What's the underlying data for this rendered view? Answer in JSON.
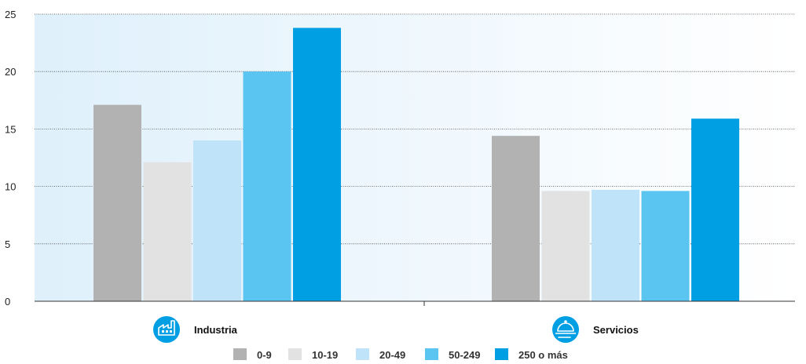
{
  "chart_data": {
    "type": "bar",
    "categories": [
      "Industria",
      "Servicios"
    ],
    "series": [
      {
        "name": "0-9",
        "values": [
          17.1,
          14.4
        ],
        "color": "#b2b2b2"
      },
      {
        "name": "10-19",
        "values": [
          12.1,
          9.6
        ],
        "color": "#e2e2e2"
      },
      {
        "name": "20-49",
        "values": [
          14.0,
          9.7
        ],
        "color": "#bfe3f8"
      },
      {
        "name": "50-249",
        "values": [
          20.0,
          9.6
        ],
        "color": "#5bc5f2"
      },
      {
        "name": "250 o más",
        "values": [
          23.8,
          15.9
        ],
        "color": "#009fe3"
      }
    ],
    "ylim": [
      0,
      25
    ],
    "yticks": [
      0,
      5,
      10,
      15,
      20,
      25
    ],
    "grid": true,
    "legend_position": "bottom",
    "category_icons": [
      "factory-icon",
      "food-service-icon"
    ],
    "icon_color": "#009fe3",
    "background_gradient": [
      "#dff0fb",
      "#ffffff"
    ]
  }
}
